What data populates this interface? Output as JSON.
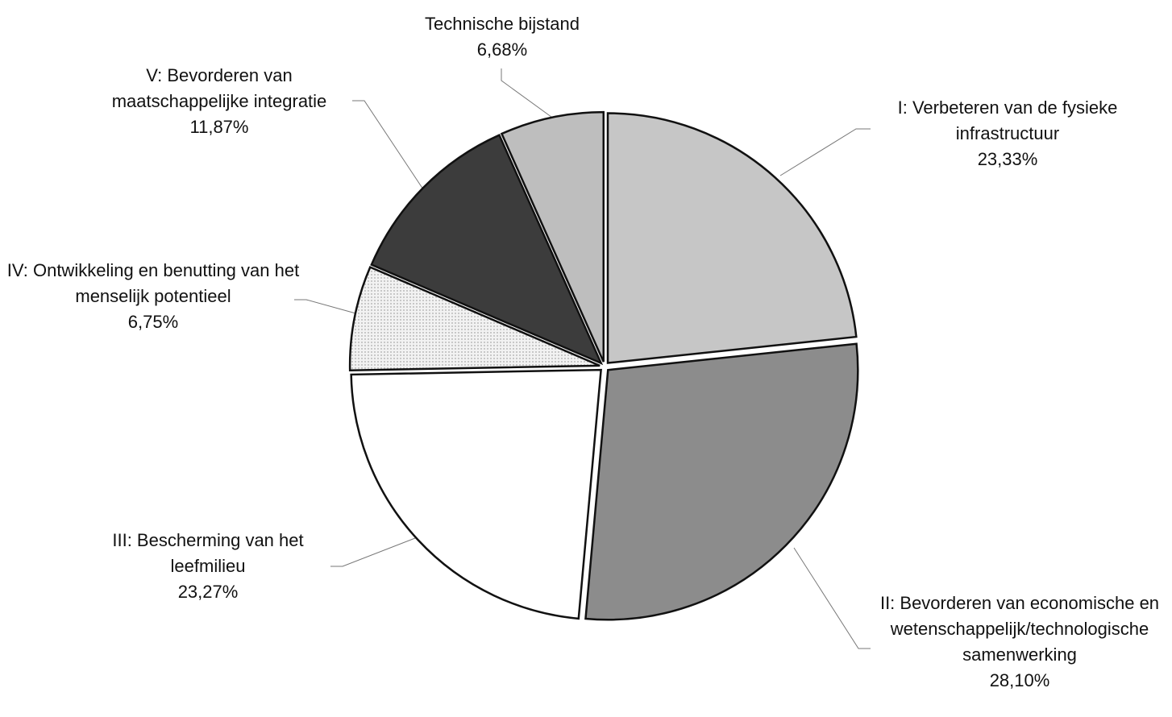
{
  "chart_data": {
    "type": "pie",
    "categories": [
      "I: Verbeteren van de fysieke infrastructuur",
      "II: Bevorderen van economische en wetenschappelijk/technologische samenwerking",
      "III: Bescherming van het leefmilieu",
      "IV: Ontwikkeling en benutting van het menselijk potentieel",
      "V: Bevorderen van maatschappelijke integratie",
      "Technische bijstand"
    ],
    "values": [
      23.33,
      28.1,
      23.27,
      6.75,
      11.87,
      6.68
    ],
    "value_labels": [
      "23,33%",
      "28,10%",
      "23,27%",
      "6,75%",
      "11,87%",
      "6,68%"
    ],
    "colors": [
      "#c6c6c6",
      "#8c8c8c",
      "#ffffff",
      "#ececec",
      "#3c3c3c",
      "#bebebe"
    ]
  }
}
